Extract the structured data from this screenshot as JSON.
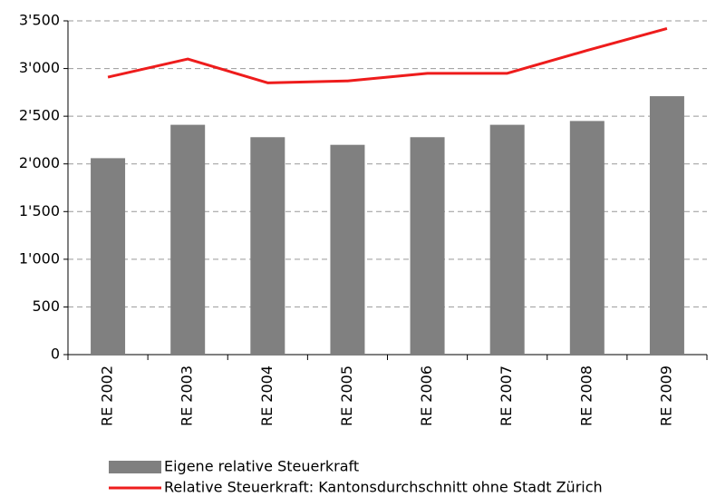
{
  "chart_data": {
    "type": "bar",
    "categories": [
      "RE 2002",
      "RE 2003",
      "RE 2004",
      "RE 2005",
      "RE 2006",
      "RE 2007",
      "RE 2008",
      "RE 2009"
    ],
    "series": [
      {
        "name": "Eigene relative Steuerkraft",
        "type": "bar",
        "color": "#808080",
        "values": [
          2060,
          2410,
          2280,
          2200,
          2280,
          2410,
          2450,
          2710
        ]
      },
      {
        "name": "Relative Steuerkraft: Kantonsdurchschnitt ohne Stadt Zürich",
        "type": "line",
        "color": "#ee1c1c",
        "values": [
          2910,
          3100,
          2850,
          2870,
          2950,
          2950,
          3190,
          3420
        ]
      }
    ],
    "ylim": [
      0,
      3500
    ],
    "yticks": [
      0,
      500,
      {
        "value": 1000,
        "label": "1'000"
      },
      {
        "value": 1500,
        "label": "1'500"
      },
      {
        "value": 2000,
        "label": "2'000"
      },
      {
        "value": 2500,
        "label": "2'500"
      },
      {
        "value": 3000,
        "label": "3'000"
      },
      {
        "value": 3500,
        "label": "3'500"
      }
    ],
    "grid": true,
    "legend": "bottom"
  }
}
